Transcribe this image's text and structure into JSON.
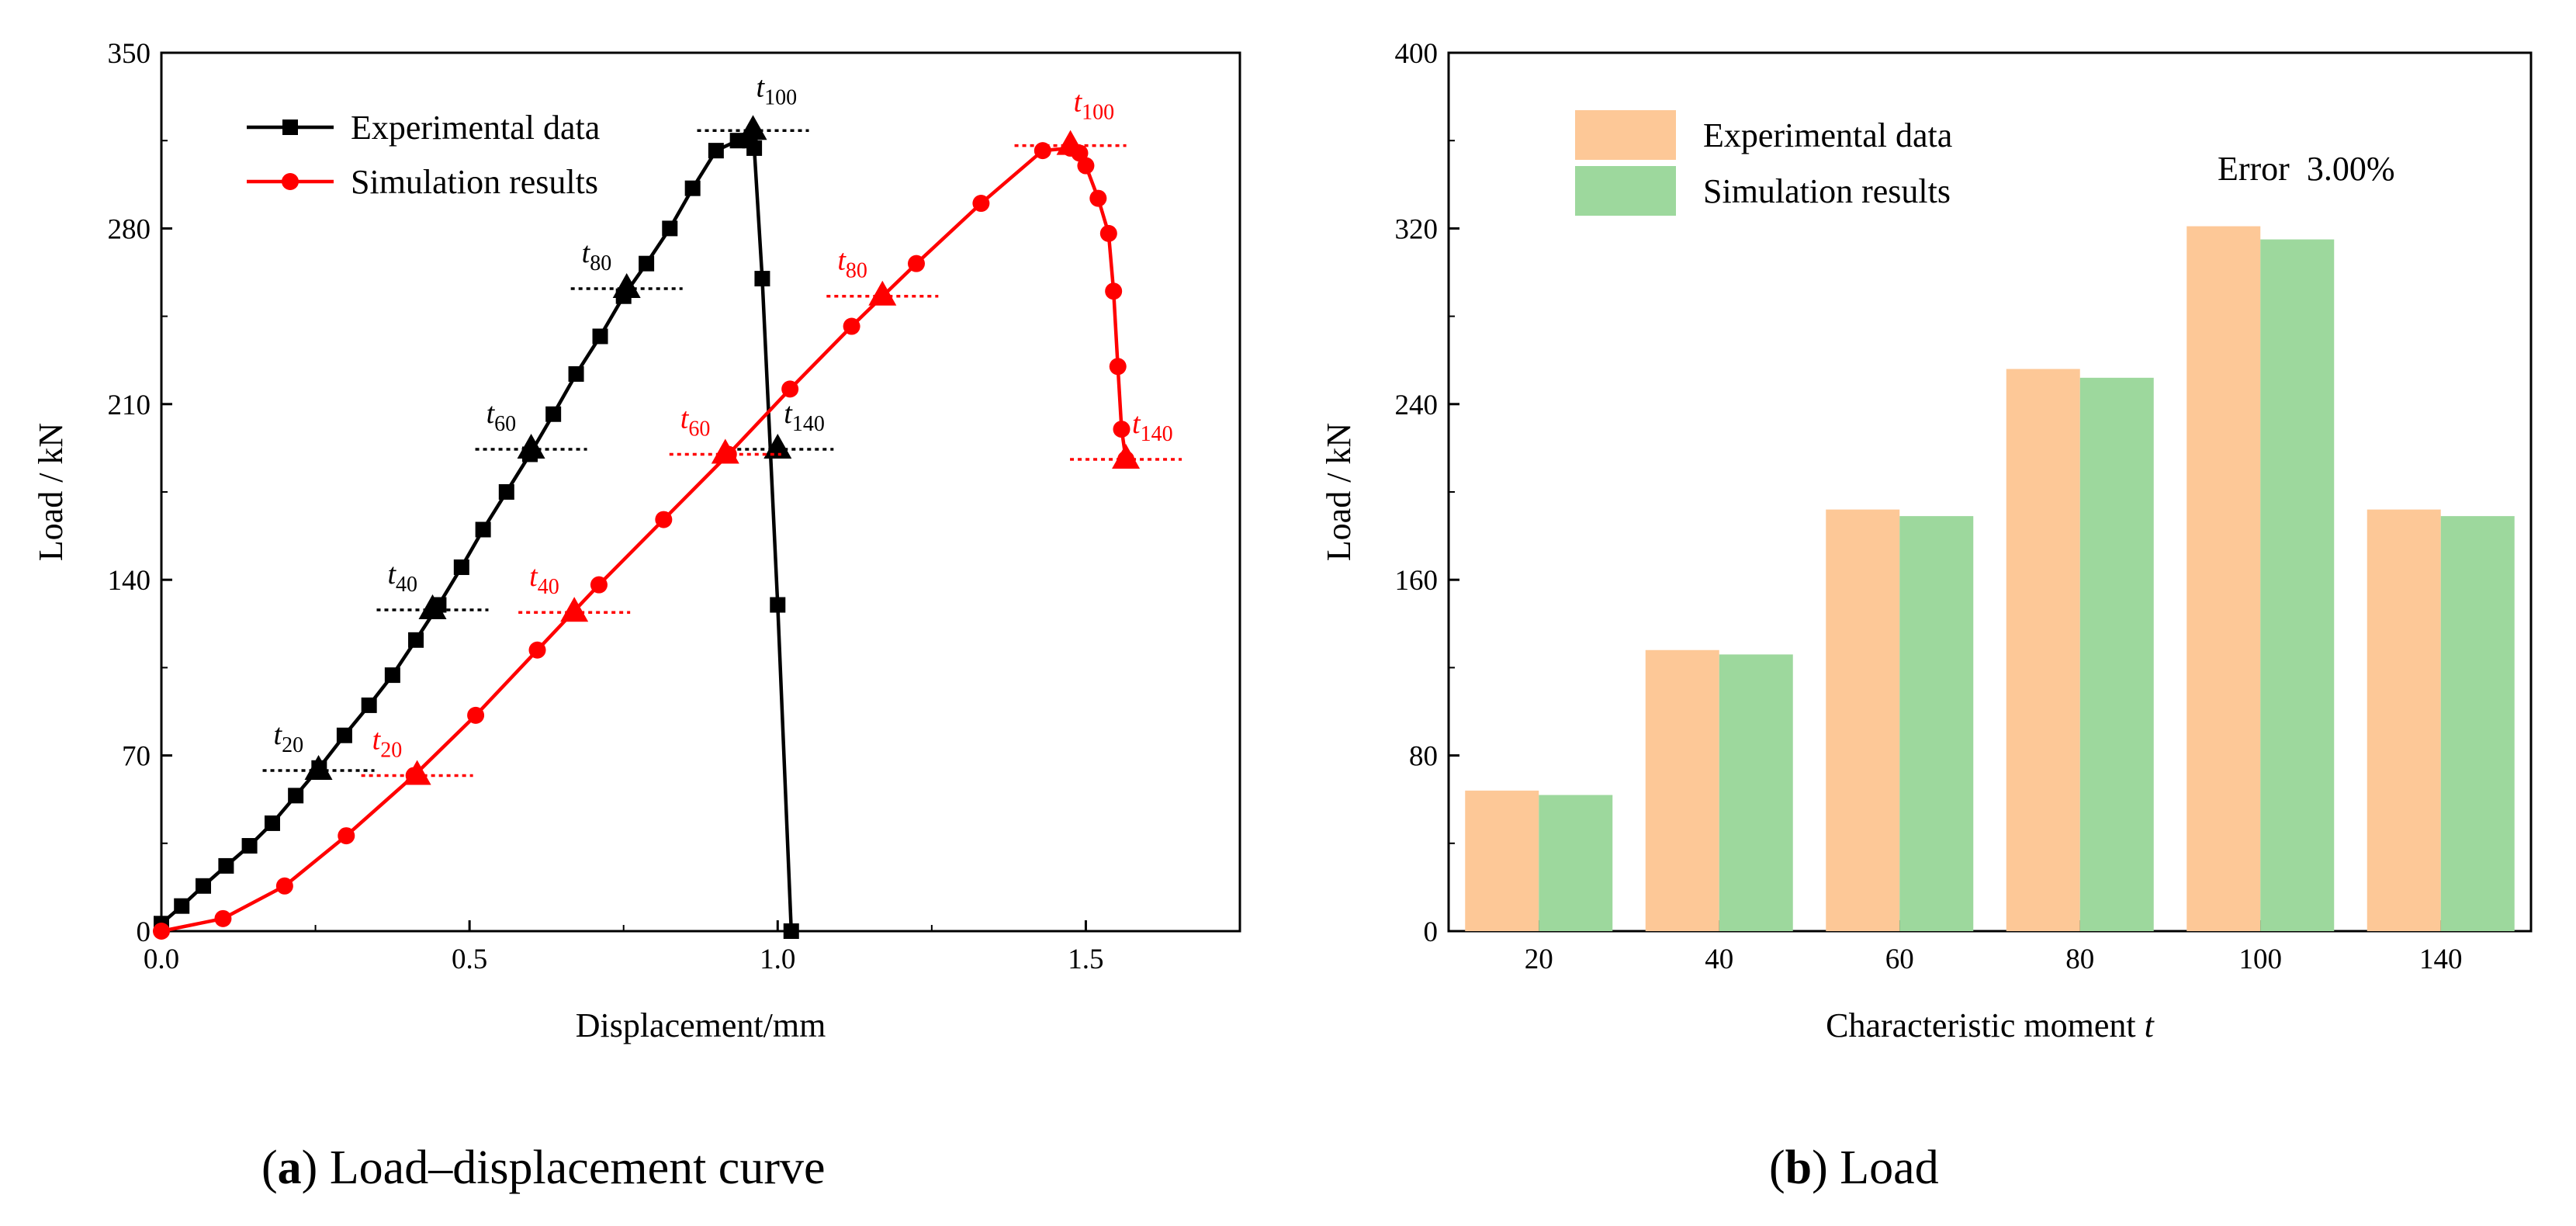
{
  "chart_data": [
    {
      "type": "line",
      "caption": {
        "letter": "a",
        "text": " Load–displacement curve"
      },
      "xlabel": "Displacement/mm",
      "ylabel": "Load / kN",
      "xlim": [
        0,
        1.75
      ],
      "ylim": [
        0,
        350
      ],
      "xticks": [
        0.0,
        0.5,
        1.0,
        1.5
      ],
      "xtick_labels": [
        "0.0",
        "0.5",
        "1.0",
        "1.5"
      ],
      "yticks": [
        0,
        70,
        140,
        210,
        280,
        350
      ],
      "ytick_labels": [
        "0",
        "70",
        "140",
        "210",
        "280",
        "350"
      ],
      "legend": "top-left",
      "series": [
        {
          "name": "Experimental data",
          "color": "#000000",
          "marker": "square",
          "x": [
            0.0,
            0.033,
            0.068,
            0.105,
            0.143,
            0.18,
            0.218,
            0.256,
            0.297,
            0.337,
            0.375,
            0.413,
            0.45,
            0.487,
            0.522,
            0.56,
            0.598,
            0.636,
            0.673,
            0.712,
            0.75,
            0.787,
            0.825,
            0.862,
            0.9,
            0.935,
            0.955,
            0.962,
            0.975,
            1.0,
            1.022
          ],
          "y": [
            3,
            10,
            18,
            26,
            34,
            43,
            54,
            65,
            78,
            90,
            102,
            116,
            130,
            145,
            160,
            175,
            190,
            206,
            222,
            237,
            253,
            266,
            280,
            296,
            311,
            315,
            315,
            312,
            260,
            130,
            0
          ],
          "characteristic_points": [
            {
              "label": "t",
              "sub": "20",
              "x": 0.255,
              "y": 64
            },
            {
              "label": "t",
              "sub": "40",
              "x": 0.44,
              "y": 128
            },
            {
              "label": "t",
              "sub": "60",
              "x": 0.6,
              "y": 192
            },
            {
              "label": "t",
              "sub": "80",
              "x": 0.755,
              "y": 256
            },
            {
              "label": "t",
              "sub": "100",
              "x": 0.96,
              "y": 319
            },
            {
              "label": "t",
              "sub": "140",
              "x": 1.0,
              "y": 192
            }
          ]
        },
        {
          "name": "Simulation results",
          "color": "#ff0000",
          "marker": "circle",
          "x": [
            0.0,
            0.1,
            0.2,
            0.3,
            0.41,
            0.51,
            0.61,
            0.71,
            0.815,
            0.92,
            1.02,
            1.12,
            1.225,
            1.33,
            1.43,
            1.475,
            1.49,
            1.5,
            1.52,
            1.537,
            1.545,
            1.552,
            1.558,
            1.565
          ],
          "y": [
            0,
            5,
            18,
            38,
            62,
            86,
            112,
            138,
            164,
            190,
            216,
            241,
            266,
            290,
            311,
            312,
            310,
            305,
            292,
            278,
            255,
            225,
            200,
            188
          ],
          "characteristic_points": [
            {
              "label": "t",
              "sub": "20",
              "x": 0.415,
              "y": 62
            },
            {
              "label": "t",
              "sub": "40",
              "x": 0.67,
              "y": 127
            },
            {
              "label": "t",
              "sub": "60",
              "x": 0.915,
              "y": 190
            },
            {
              "label": "t",
              "sub": "80",
              "x": 1.17,
              "y": 253
            },
            {
              "label": "t",
              "sub": "100",
              "x": 1.475,
              "y": 313
            },
            {
              "label": "t",
              "sub": "140",
              "x": 1.565,
              "y": 188
            }
          ]
        }
      ]
    },
    {
      "type": "bar",
      "caption": {
        "letter": "b",
        "text": " Load"
      },
      "xlabel": "Characteristic moment",
      "xlabel_var": "t",
      "ylabel": "Load / kN",
      "ylim": [
        0,
        400
      ],
      "yticks": [
        0,
        80,
        160,
        240,
        320,
        400
      ],
      "ytick_labels": [
        "0",
        "80",
        "160",
        "240",
        "320",
        "400"
      ],
      "categories": [
        "20",
        "40",
        "60",
        "80",
        "100",
        "140"
      ],
      "legend": "top-left",
      "annotation": "Error  3.00%",
      "series": [
        {
          "name": "Experimental data",
          "color": "#fdc897",
          "values": [
            64,
            128,
            192,
            256,
            321,
            192
          ]
        },
        {
          "name": "Simulation results",
          "color": "#9dd89d",
          "values": [
            62,
            126,
            189,
            252,
            315,
            189
          ]
        }
      ]
    }
  ]
}
